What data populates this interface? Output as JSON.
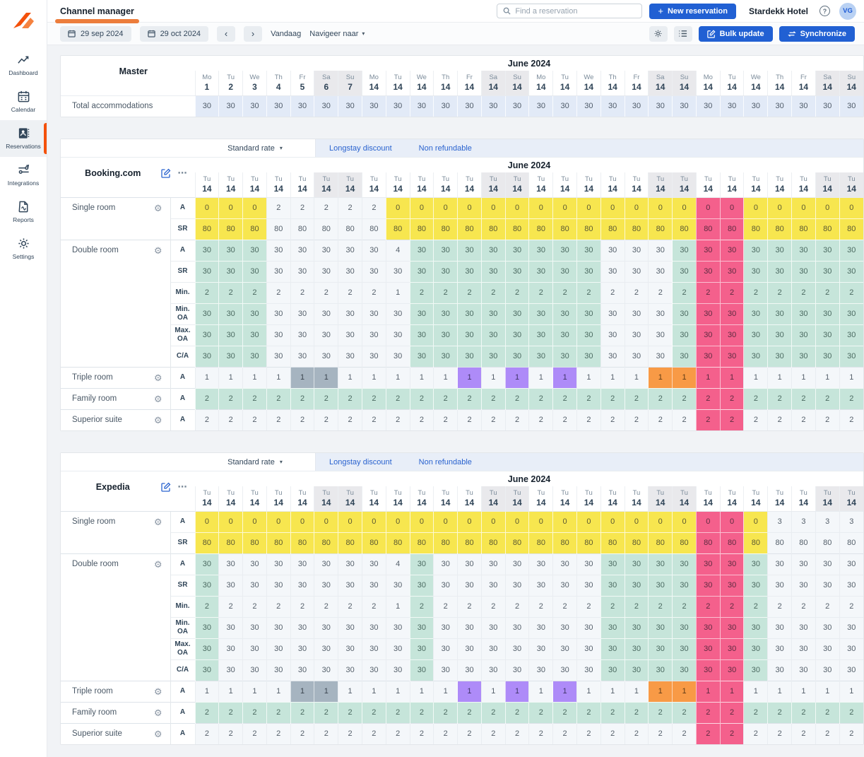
{
  "topbar": {
    "title": "Channel manager",
    "search_placeholder": "Find a reservation",
    "new_reservation": "New reservation",
    "hotel_name": "Stardekk Hotel",
    "avatar_initials": "VG"
  },
  "toolbar": {
    "date_from": "29 sep 2024",
    "date_to": "29 oct 2024",
    "prev": "‹",
    "next": "›",
    "today_label": "Vandaag",
    "navigate_label": "Navigeer naar",
    "bulk_update": "Bulk update",
    "synchronize": "Synchronize"
  },
  "sidebar": {
    "items": [
      {
        "label": "Dashboard",
        "icon": "line-chart-icon",
        "active": false
      },
      {
        "label": "Calendar",
        "icon": "calendar-icon",
        "active": false
      },
      {
        "label": "Reservations",
        "icon": "contact-book-icon",
        "active": true
      },
      {
        "label": "Integrations",
        "icon": "sliders-icon",
        "active": false
      },
      {
        "label": "Reports",
        "icon": "report-file-icon",
        "active": false
      },
      {
        "label": "Settings",
        "icon": "gear-icon",
        "active": false
      }
    ]
  },
  "colors": {
    "yellow": "#f7e64f",
    "teal": "#c6e5da",
    "pink": "#f4608c",
    "purple": "#ae8bf8",
    "orange": "#f89a46",
    "gray": "#a6b4c0",
    "master_row": "#e2eaf7",
    "accent_blue": "#2160d3",
    "accent_orange": "#f4510b"
  },
  "columns": {
    "count": 28,
    "weekend_indices": [
      5,
      6,
      12,
      13,
      19,
      20,
      26,
      27
    ]
  },
  "master": {
    "title": "Master",
    "month": "June 2024",
    "row_label": "Total accommodations",
    "dows": [
      "Mo",
      "Tu",
      "We",
      "Th",
      "Fr",
      "Sa",
      "Su",
      "Mo",
      "Tu",
      "We",
      "Th",
      "Fr",
      "Sa",
      "Su",
      "Mo",
      "Tu",
      "We",
      "Th",
      "Fr",
      "Sa",
      "Su",
      "Mo",
      "Tu",
      "We",
      "Th",
      "Fr",
      "Sa",
      "Su"
    ],
    "nums": [
      "1",
      "2",
      "3",
      "4",
      "5",
      "6",
      "7",
      "14",
      "14",
      "14",
      "14",
      "14",
      "14",
      "14",
      "14",
      "14",
      "14",
      "14",
      "14",
      "14",
      "14",
      "14",
      "14",
      "14",
      "14",
      "14",
      "14",
      "14"
    ],
    "values": [
      30,
      30,
      30,
      30,
      30,
      30,
      30,
      30,
      30,
      30,
      30,
      30,
      30,
      30,
      30,
      30,
      30,
      30,
      30,
      30,
      30,
      30,
      30,
      30,
      30,
      30,
      30,
      30
    ]
  },
  "channels": [
    {
      "name": "Booking.com",
      "month": "June 2024",
      "day": {
        "dow": "Tu",
        "num": "14"
      },
      "tabs": {
        "active": "Standard rate",
        "links": [
          "Longstay discount",
          "Non refundable"
        ]
      },
      "rows": [
        {
          "room": "Single room",
          "span": 2,
          "sub": "A",
          "values": [
            0,
            0,
            0,
            2,
            2,
            2,
            2,
            2,
            0,
            0,
            0,
            0,
            0,
            0,
            0,
            0,
            0,
            0,
            0,
            0,
            0,
            0,
            0,
            0,
            0,
            0,
            0,
            0
          ],
          "colors": "yyywwwwwyyyyyyyyyyyyyppyyyyy"
        },
        {
          "sub": "SR",
          "values": [
            80,
            80,
            80,
            80,
            80,
            80,
            80,
            80,
            80,
            80,
            80,
            80,
            80,
            80,
            80,
            80,
            80,
            80,
            80,
            80,
            80,
            80,
            80,
            80,
            80,
            80,
            80,
            80
          ],
          "colors": "yyywwwwwyyyyyyyyyyyyyppyyyyy"
        },
        {
          "room": "Double room",
          "span": 6,
          "sub": "A",
          "values": [
            30,
            30,
            30,
            30,
            30,
            30,
            30,
            30,
            4,
            30,
            30,
            30,
            30,
            30,
            30,
            30,
            30,
            30,
            30,
            30,
            30,
            30,
            30,
            30,
            30,
            30,
            30,
            30
          ],
          "colors": "tttwwwwwwttttttttwwwtppttttt"
        },
        {
          "sub": "SR",
          "values": [
            30,
            30,
            30,
            30,
            30,
            30,
            30,
            30,
            30,
            30,
            30,
            30,
            30,
            30,
            30,
            30,
            30,
            30,
            30,
            30,
            30,
            30,
            30,
            30,
            30,
            30,
            30,
            30
          ],
          "colors": "tttwwwwwwttttttttwwwtppttttt"
        },
        {
          "sub": "Min.",
          "values": [
            2,
            2,
            2,
            2,
            2,
            2,
            2,
            2,
            1,
            2,
            2,
            2,
            2,
            2,
            2,
            2,
            2,
            2,
            2,
            2,
            2,
            2,
            2,
            2,
            2,
            2,
            2,
            2
          ],
          "colors": "tttwwwwwwttttttttwwwtppttttt"
        },
        {
          "sub": "Min. OA",
          "values": [
            30,
            30,
            30,
            30,
            30,
            30,
            30,
            30,
            30,
            30,
            30,
            30,
            30,
            30,
            30,
            30,
            30,
            30,
            30,
            30,
            30,
            30,
            30,
            30,
            30,
            30,
            30,
            30
          ],
          "colors": "tttwwwwwwttttttttwwwtppttttt"
        },
        {
          "sub": "Max. OA",
          "values": [
            30,
            30,
            30,
            30,
            30,
            30,
            30,
            30,
            30,
            30,
            30,
            30,
            30,
            30,
            30,
            30,
            30,
            30,
            30,
            30,
            30,
            30,
            30,
            30,
            30,
            30,
            30,
            30
          ],
          "colors": "tttwwwwwwttttttttwwwtppttttt"
        },
        {
          "sub": "C/A",
          "values": [
            30,
            30,
            30,
            30,
            30,
            30,
            30,
            30,
            30,
            30,
            30,
            30,
            30,
            30,
            30,
            30,
            30,
            30,
            30,
            30,
            30,
            30,
            30,
            30,
            30,
            30,
            30,
            30
          ],
          "colors": "tttwwwwwwttttttttwwwtppttttt"
        },
        {
          "room": "Triple room",
          "span": 1,
          "sub": "A",
          "values": [
            1,
            1,
            1,
            1,
            1,
            1,
            1,
            1,
            1,
            1,
            1,
            1,
            1,
            1,
            1,
            1,
            1,
            1,
            1,
            1,
            1,
            1,
            1,
            1,
            1,
            1,
            1,
            1
          ],
          "colors": "wwwwggwwwwwuwuwuwwwooppwwwww"
        },
        {
          "room": "Family room",
          "span": 1,
          "sub": "A",
          "values": [
            2,
            2,
            2,
            2,
            2,
            2,
            2,
            2,
            2,
            2,
            2,
            2,
            2,
            2,
            2,
            2,
            2,
            2,
            2,
            2,
            2,
            2,
            2,
            2,
            2,
            2,
            2,
            2
          ],
          "colors": "tttttttttttttttttttttppttttt"
        },
        {
          "room": "Superior suite",
          "span": 1,
          "sub": "A",
          "values": [
            2,
            2,
            2,
            2,
            2,
            2,
            2,
            2,
            2,
            2,
            2,
            2,
            2,
            2,
            2,
            2,
            2,
            2,
            2,
            2,
            2,
            2,
            2,
            2,
            2,
            2,
            2,
            2
          ],
          "colors": "wwwwwwwwwwwwwwwwwwwwwppwwwww"
        }
      ]
    },
    {
      "name": "Expedia",
      "month": "June 2024",
      "day": {
        "dow": "Tu",
        "num": "14"
      },
      "tabs": {
        "active": "Standard rate",
        "links": [
          "Longstay discount",
          "Non refundable"
        ]
      },
      "rows": [
        {
          "room": "Single room",
          "span": 2,
          "sub": "A",
          "values": [
            0,
            0,
            0,
            0,
            0,
            0,
            0,
            0,
            0,
            0,
            0,
            0,
            0,
            0,
            0,
            0,
            0,
            0,
            0,
            0,
            0,
            0,
            0,
            0,
            3,
            3,
            3,
            3
          ],
          "colors": "yyyyyyyyyyyyyyyyyyyyyppywwww"
        },
        {
          "sub": "SR",
          "values": [
            80,
            80,
            80,
            80,
            80,
            80,
            80,
            80,
            80,
            80,
            80,
            80,
            80,
            80,
            80,
            80,
            80,
            80,
            80,
            80,
            80,
            80,
            80,
            80,
            80,
            80,
            80,
            80
          ],
          "colors": "yyyyyyyyyyyyyyyyyyyyyppywwww"
        },
        {
          "room": "Double room",
          "span": 6,
          "sub": "A",
          "values": [
            30,
            30,
            30,
            30,
            30,
            30,
            30,
            30,
            4,
            30,
            30,
            30,
            30,
            30,
            30,
            30,
            30,
            30,
            30,
            30,
            30,
            30,
            30,
            30,
            30,
            30,
            30,
            30
          ],
          "colors": "twwwwwwwwtwwwwwwwttttpptwwww"
        },
        {
          "sub": "SR",
          "values": [
            30,
            30,
            30,
            30,
            30,
            30,
            30,
            30,
            30,
            30,
            30,
            30,
            30,
            30,
            30,
            30,
            30,
            30,
            30,
            30,
            30,
            30,
            30,
            30,
            30,
            30,
            30,
            30
          ],
          "colors": "twwwwwwwwtwwwwwwwttttpptwwww"
        },
        {
          "sub": "Min.",
          "values": [
            2,
            2,
            2,
            2,
            2,
            2,
            2,
            2,
            1,
            2,
            2,
            2,
            2,
            2,
            2,
            2,
            2,
            2,
            2,
            2,
            2,
            2,
            2,
            2,
            2,
            2,
            2,
            2
          ],
          "colors": "twwwwwwwwtwwwwwwwttttpptwwww"
        },
        {
          "sub": "Min. OA",
          "values": [
            30,
            30,
            30,
            30,
            30,
            30,
            30,
            30,
            30,
            30,
            30,
            30,
            30,
            30,
            30,
            30,
            30,
            30,
            30,
            30,
            30,
            30,
            30,
            30,
            30,
            30,
            30,
            30
          ],
          "colors": "twwwwwwwwtwwwwwwwttttpptwwww"
        },
        {
          "sub": "Max. OA",
          "values": [
            30,
            30,
            30,
            30,
            30,
            30,
            30,
            30,
            30,
            30,
            30,
            30,
            30,
            30,
            30,
            30,
            30,
            30,
            30,
            30,
            30,
            30,
            30,
            30,
            30,
            30,
            30,
            30
          ],
          "colors": "twwwwwwwwtwwwwwwwttttpptwwww"
        },
        {
          "sub": "C/A",
          "values": [
            30,
            30,
            30,
            30,
            30,
            30,
            30,
            30,
            30,
            30,
            30,
            30,
            30,
            30,
            30,
            30,
            30,
            30,
            30,
            30,
            30,
            30,
            30,
            30,
            30,
            30,
            30,
            30
          ],
          "colors": "twwwwwwwwtwwwwwwwttttpptwwww"
        },
        {
          "room": "Triple room",
          "span": 1,
          "sub": "A",
          "values": [
            1,
            1,
            1,
            1,
            1,
            1,
            1,
            1,
            1,
            1,
            1,
            1,
            1,
            1,
            1,
            1,
            1,
            1,
            1,
            1,
            1,
            1,
            1,
            1,
            1,
            1,
            1,
            1
          ],
          "colors": "wwwwggwwwwwuwuwuwwwooppwwwww"
        },
        {
          "room": "Family room",
          "span": 1,
          "sub": "A",
          "values": [
            2,
            2,
            2,
            2,
            2,
            2,
            2,
            2,
            2,
            2,
            2,
            2,
            2,
            2,
            2,
            2,
            2,
            2,
            2,
            2,
            2,
            2,
            2,
            2,
            2,
            2,
            2,
            2
          ],
          "colors": "tttttttttttttttttttttppttttt"
        },
        {
          "room": "Superior suite",
          "span": 1,
          "sub": "A",
          "values": [
            2,
            2,
            2,
            2,
            2,
            2,
            2,
            2,
            2,
            2,
            2,
            2,
            2,
            2,
            2,
            2,
            2,
            2,
            2,
            2,
            2,
            2,
            2,
            2,
            2,
            2,
            2,
            2
          ],
          "colors": "wwwwwwwwwwwwwwwwwwwwwppwwwww"
        }
      ]
    }
  ]
}
